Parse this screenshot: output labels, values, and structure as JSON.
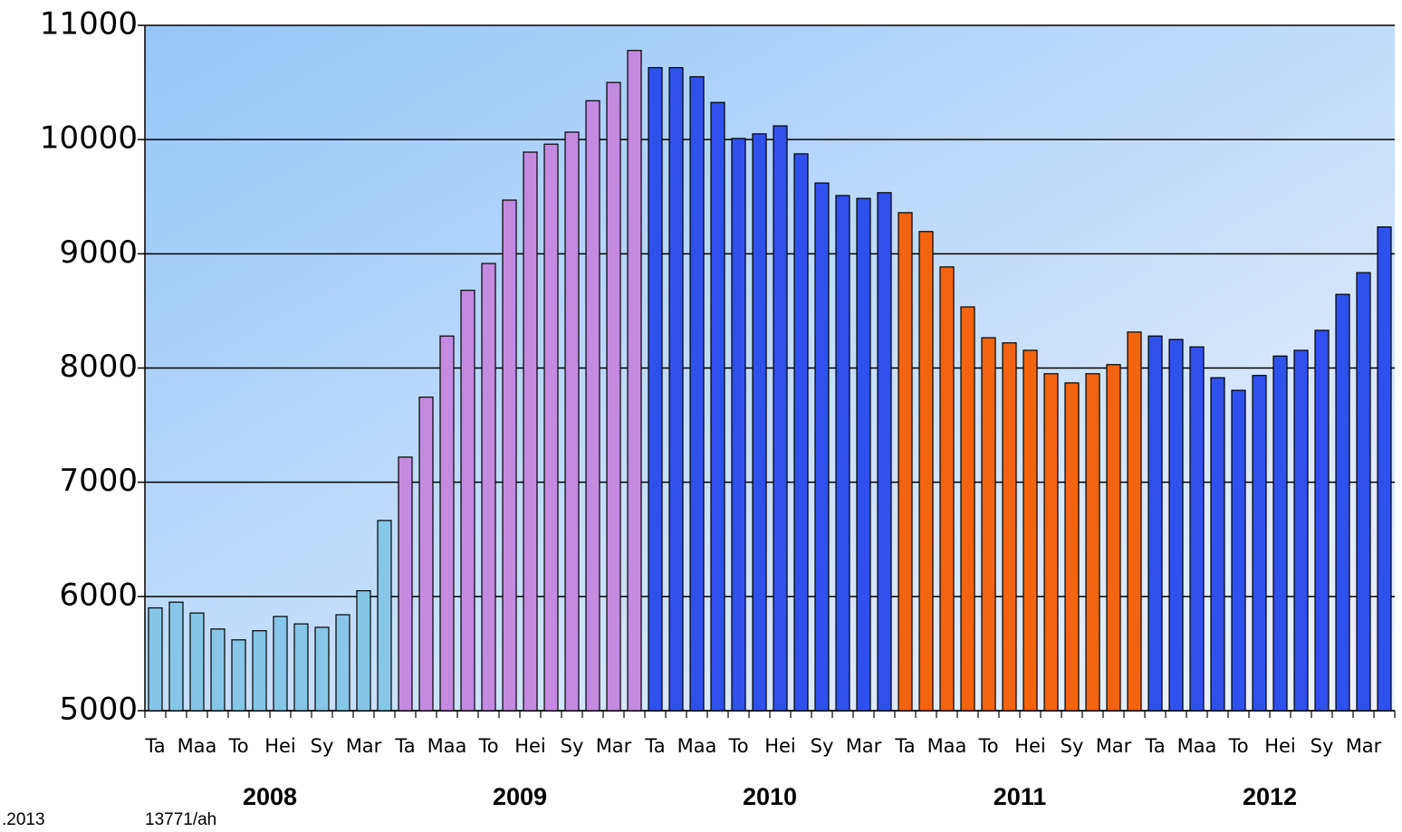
{
  "chart_data": {
    "type": "bar",
    "categories": [
      "Ta",
      null,
      "Maa",
      null,
      "To",
      null,
      "Hei",
      null,
      "Sy",
      null,
      "Mar",
      null,
      "Ta",
      null,
      "Maa",
      null,
      "To",
      null,
      "Hei",
      null,
      "Sy",
      null,
      "Mar",
      null,
      "Ta",
      null,
      "Maa",
      null,
      "To",
      null,
      "Hei",
      null,
      "Sy",
      null,
      "Mar",
      null,
      "Ta",
      null,
      "Maa",
      null,
      "To",
      null,
      "Hei",
      null,
      "Sy",
      null,
      "Mar",
      null,
      "Ta",
      null,
      "Maa",
      null,
      "To",
      null,
      "Hei",
      null,
      "Sy",
      null,
      "Mar",
      null
    ],
    "groups": [
      {
        "label": "2008",
        "color": "#87c6e6",
        "values": [
          5900,
          5950,
          5855,
          5715,
          5620,
          5700,
          5825,
          5760,
          5730,
          5840,
          6050,
          6665
        ]
      },
      {
        "label": "2009",
        "color": "#c48ae0",
        "values": [
          7220,
          7745,
          8280,
          8680,
          8915,
          9470,
          9890,
          9960,
          10065,
          10340,
          10500,
          10780
        ]
      },
      {
        "label": "2010",
        "color": "#3050ee",
        "values": [
          10630,
          10630,
          10550,
          10325,
          10010,
          10050,
          10120,
          9875,
          9620,
          9510,
          9485,
          9535
        ]
      },
      {
        "label": "2011",
        "color": "#f26410",
        "values": [
          9360,
          9195,
          8885,
          8535,
          8265,
          8220,
          8155,
          7950,
          7870,
          7950,
          8030,
          8315
        ]
      },
      {
        "label": "2012",
        "color": "#3050ee",
        "values": [
          8280,
          8250,
          8185,
          7915,
          7805,
          7935,
          8105,
          8155,
          8330,
          8645,
          8835,
          9235
        ]
      }
    ],
    "ylim": [
      5000,
      11000
    ],
    "yticks": [
      5000,
      6000,
      7000,
      8000,
      9000,
      10000,
      11000
    ],
    "grid": true,
    "footer": [
      ".2013",
      "13771/ah"
    ]
  }
}
